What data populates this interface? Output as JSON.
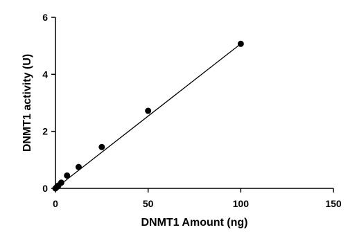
{
  "chart_data": {
    "type": "scatter",
    "title": "",
    "xlabel": "DNMT1 Amount (ng)",
    "ylabel": "DNMT1 activity (U)",
    "xlim": [
      0,
      150
    ],
    "ylim": [
      0,
      6
    ],
    "x_ticks": [
      "0",
      "50",
      "100",
      "150"
    ],
    "y_ticks": [
      "0",
      "2",
      "4",
      "6"
    ],
    "grid": false,
    "legend": "none",
    "series": [
      {
        "marker": "filled-circle",
        "color": "#000000",
        "points": [
          {
            "x": 0,
            "y": 0.0
          },
          {
            "x": 0.78,
            "y": 0.05
          },
          {
            "x": 1.56,
            "y": 0.1
          },
          {
            "x": 3.13,
            "y": 0.2
          },
          {
            "x": 6.25,
            "y": 0.45
          },
          {
            "x": 12.5,
            "y": 0.75
          },
          {
            "x": 25,
            "y": 1.45
          },
          {
            "x": 50,
            "y": 2.72
          },
          {
            "x": 100,
            "y": 5.07
          }
        ]
      }
    ],
    "fit_line": {
      "x": [
        0,
        100
      ],
      "y": [
        0,
        5.07
      ]
    }
  }
}
